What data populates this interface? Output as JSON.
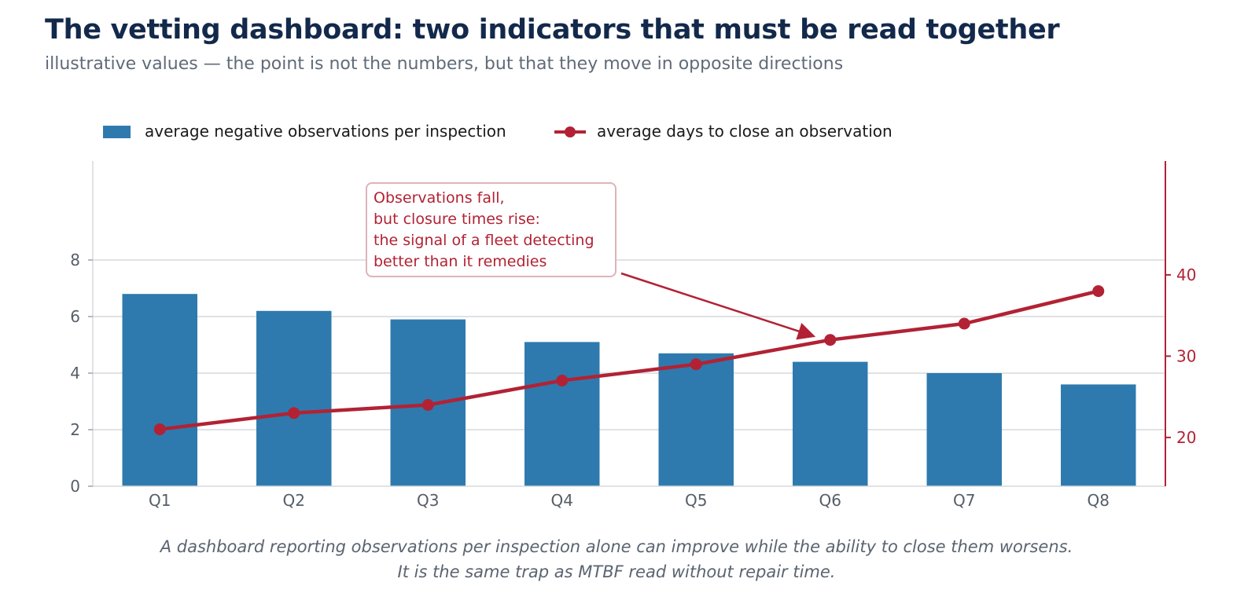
{
  "title": "The vetting dashboard: two indicators that must be read together",
  "subtitle": "illustrative values — the point is not the numbers, but that they move in opposite directions",
  "colors": {
    "bar": "#2e7aae",
    "line": "#b22234",
    "grid": "#d5d9de",
    "axis_text": "#555e68",
    "title": "#13294b"
  },
  "chart_data": {
    "type": "bar",
    "categories": [
      "Q1",
      "Q2",
      "Q3",
      "Q4",
      "Q5",
      "Q6",
      "Q7",
      "Q8"
    ],
    "series": [
      {
        "name": "average negative observations per inspection",
        "type": "bar",
        "axis": "left",
        "values": [
          6.8,
          6.2,
          5.9,
          5.1,
          4.7,
          4.4,
          4.0,
          3.6
        ]
      },
      {
        "name": "average days to close an observation",
        "type": "line",
        "axis": "right",
        "values": [
          21,
          23,
          24,
          27,
          29,
          32,
          34,
          38
        ]
      }
    ],
    "y_left": {
      "ticks": [
        0,
        2,
        4,
        6,
        8
      ],
      "range": [
        0,
        11.5
      ]
    },
    "y_right": {
      "ticks": [
        20,
        30,
        40
      ],
      "range": [
        14,
        54
      ]
    },
    "legend_position": "top-left",
    "grid": true,
    "annotation": {
      "lines": [
        "Observations fall,",
        "but closure times rise:",
        "the signal of a fleet detecting",
        "better than it remedies"
      ],
      "points_to": "Q6"
    }
  },
  "caption": [
    "A dashboard reporting observations per inspection alone can improve while the ability to close them worsens.",
    "It is the same trap as MTBF read without repair time."
  ]
}
